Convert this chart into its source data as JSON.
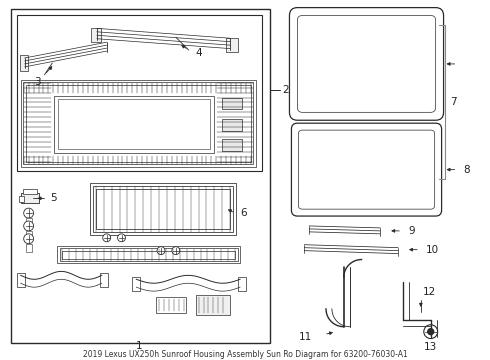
{
  "title": "2019 Lexus UX250h Sunroof Housing Assembly Sun Ro Diagram for 63200-76030-A1",
  "bg_color": "#ffffff",
  "line_color": "#2a2a2a",
  "label_color": "#222222",
  "font_size_label": 7.5,
  "font_size_title": 5.5,
  "figsize": [
    4.9,
    3.6
  ],
  "dpi": 100
}
